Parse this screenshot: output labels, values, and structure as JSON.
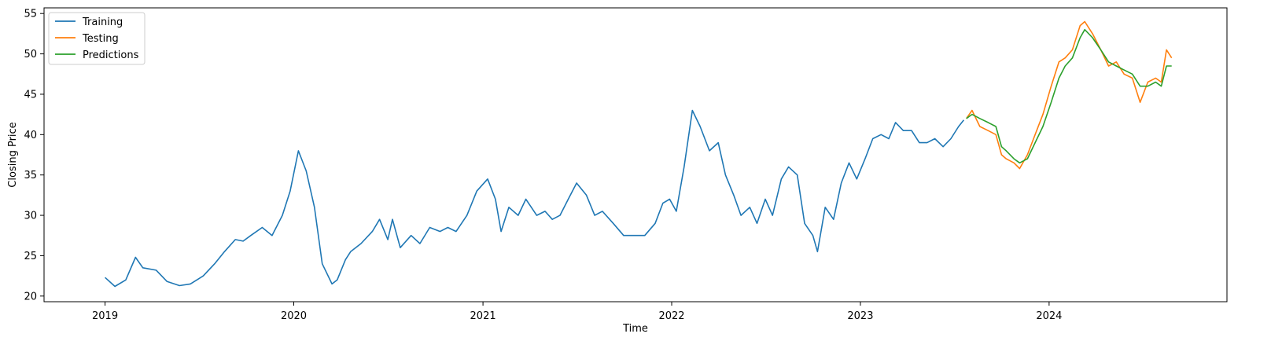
{
  "chart_data": {
    "type": "line",
    "title": "",
    "xlabel": "Time",
    "ylabel": "Closing Price",
    "xlim": [
      "2018-09-05",
      "2024-12-10"
    ],
    "ylim": [
      19.3,
      55.7
    ],
    "x_ticks": [
      "2019-01-01",
      "2020-01-01",
      "2021-01-01",
      "2022-01-01",
      "2023-01-01",
      "2024-01-01"
    ],
    "x_tick_labels": [
      "2019",
      "2020",
      "2021",
      "2022",
      "2023",
      "2024"
    ],
    "y_ticks": [
      20,
      25,
      30,
      35,
      40,
      45,
      50,
      55
    ],
    "y_tick_labels": [
      "20",
      "25",
      "30",
      "35",
      "40",
      "45",
      "50",
      "55"
    ],
    "grid": false,
    "legend_position": "top-left",
    "series": [
      {
        "name": "Training",
        "color": "#1f77b4",
        "x": [
          "2019-01-01",
          "2019-01-20",
          "2019-02-10",
          "2019-03-01",
          "2019-03-15",
          "2019-04-10",
          "2019-05-01",
          "2019-05-25",
          "2019-06-15",
          "2019-07-10",
          "2019-08-01",
          "2019-08-20",
          "2019-09-10",
          "2019-09-25",
          "2019-10-10",
          "2019-11-01",
          "2019-11-20",
          "2019-12-10",
          "2019-12-25",
          "2020-01-10",
          "2020-01-25",
          "2020-02-10",
          "2020-02-25",
          "2020-03-15",
          "2020-03-25",
          "2020-04-10",
          "2020-04-20",
          "2020-05-10",
          "2020-06-01",
          "2020-06-15",
          "2020-07-01",
          "2020-07-10",
          "2020-07-25",
          "2020-08-15",
          "2020-09-01",
          "2020-09-20",
          "2020-10-10",
          "2020-10-25",
          "2020-11-10",
          "2020-12-01",
          "2020-12-20",
          "2021-01-10",
          "2021-01-25",
          "2021-02-05",
          "2021-02-20",
          "2021-03-10",
          "2021-03-25",
          "2021-04-15",
          "2021-05-01",
          "2021-05-15",
          "2021-05-30",
          "2021-06-15",
          "2021-07-01",
          "2021-07-20",
          "2021-08-05",
          "2021-08-20",
          "2021-09-10",
          "2021-09-30",
          "2021-10-20",
          "2021-11-10",
          "2021-11-30",
          "2021-12-15",
          "2021-12-28",
          "2022-01-10",
          "2022-01-25",
          "2022-02-10",
          "2022-02-25",
          "2022-03-15",
          "2022-04-01",
          "2022-04-15",
          "2022-05-01",
          "2022-05-15",
          "2022-06-01",
          "2022-06-15",
          "2022-07-01",
          "2022-07-15",
          "2022-08-01",
          "2022-08-15",
          "2022-09-01",
          "2022-09-15",
          "2022-10-01",
          "2022-10-10",
          "2022-10-25",
          "2022-11-10",
          "2022-11-25",
          "2022-12-10",
          "2022-12-25",
          "2023-01-10",
          "2023-01-25",
          "2023-02-10",
          "2023-02-25",
          "2023-03-10",
          "2023-03-25",
          "2023-04-10",
          "2023-04-25",
          "2023-05-10",
          "2023-05-25",
          "2023-06-10",
          "2023-06-25",
          "2023-07-10",
          "2023-07-20"
        ],
        "y": [
          22.3,
          21.2,
          22.0,
          24.8,
          23.5,
          23.2,
          21.8,
          21.3,
          21.5,
          22.5,
          24.0,
          25.5,
          27.0,
          26.8,
          27.5,
          28.5,
          27.5,
          30.0,
          33.0,
          38.0,
          35.5,
          31.0,
          24.0,
          21.5,
          22.0,
          24.5,
          25.5,
          26.5,
          28.0,
          29.5,
          27.0,
          29.5,
          26.0,
          27.5,
          26.5,
          28.5,
          28.0,
          28.5,
          28.0,
          30.0,
          33.0,
          34.5,
          32.0,
          28.0,
          31.0,
          30.0,
          32.0,
          30.0,
          30.5,
          29.5,
          30.0,
          32.0,
          34.0,
          32.5,
          30.0,
          30.5,
          29.0,
          27.5,
          27.5,
          27.5,
          29.0,
          31.5,
          32.0,
          30.5,
          36.0,
          43.0,
          41.0,
          38.0,
          39.0,
          35.0,
          32.5,
          30.0,
          31.0,
          29.0,
          32.0,
          30.0,
          34.5,
          36.0,
          35.0,
          29.0,
          27.5,
          25.5,
          31.0,
          29.5,
          34.0,
          36.5,
          34.5,
          37.0,
          39.5,
          40.0,
          39.5,
          41.5,
          40.5,
          40.5,
          39.0,
          39.0,
          39.5,
          38.5,
          39.5,
          41.0,
          41.8
        ]
      },
      {
        "name": "Testing",
        "color": "#ff7f0e",
        "x": [
          "2023-07-25",
          "2023-08-05",
          "2023-08-20",
          "2023-09-05",
          "2023-09-20",
          "2023-10-01",
          "2023-10-10",
          "2023-10-25",
          "2023-11-05",
          "2023-11-20",
          "2023-12-05",
          "2023-12-20",
          "2024-01-05",
          "2024-01-20",
          "2024-02-01",
          "2024-02-15",
          "2024-03-01",
          "2024-03-10",
          "2024-03-25",
          "2024-04-10",
          "2024-04-25",
          "2024-05-10",
          "2024-05-25",
          "2024-06-10",
          "2024-06-25",
          "2024-07-10",
          "2024-07-25",
          "2024-08-05",
          "2024-08-15",
          "2024-08-25"
        ],
        "y": [
          42.0,
          43.0,
          41.0,
          40.5,
          40.0,
          37.5,
          37.0,
          36.5,
          35.8,
          37.5,
          40.0,
          42.5,
          46.0,
          49.0,
          49.5,
          50.5,
          53.5,
          54.0,
          52.5,
          50.5,
          48.5,
          49.0,
          47.5,
          47.0,
          44.0,
          46.5,
          47.0,
          46.5,
          50.5,
          49.5
        ]
      },
      {
        "name": "Predictions",
        "color": "#2ca02c",
        "x": [
          "2023-07-25",
          "2023-08-05",
          "2023-08-20",
          "2023-09-05",
          "2023-09-20",
          "2023-10-01",
          "2023-10-10",
          "2023-10-25",
          "2023-11-05",
          "2023-11-20",
          "2023-12-05",
          "2023-12-20",
          "2024-01-05",
          "2024-01-20",
          "2024-02-01",
          "2024-02-15",
          "2024-03-01",
          "2024-03-10",
          "2024-03-25",
          "2024-04-10",
          "2024-04-25",
          "2024-05-10",
          "2024-05-25",
          "2024-06-10",
          "2024-06-25",
          "2024-07-10",
          "2024-07-25",
          "2024-08-05",
          "2024-08-15",
          "2024-08-25"
        ],
        "y": [
          42.0,
          42.5,
          42.0,
          41.5,
          41.0,
          38.5,
          38.0,
          37.0,
          36.5,
          37.0,
          39.0,
          41.0,
          44.0,
          47.0,
          48.5,
          49.5,
          52.0,
          53.0,
          52.0,
          50.5,
          49.0,
          48.5,
          48.0,
          47.5,
          46.0,
          46.0,
          46.5,
          46.0,
          48.5,
          48.5
        ]
      }
    ]
  }
}
